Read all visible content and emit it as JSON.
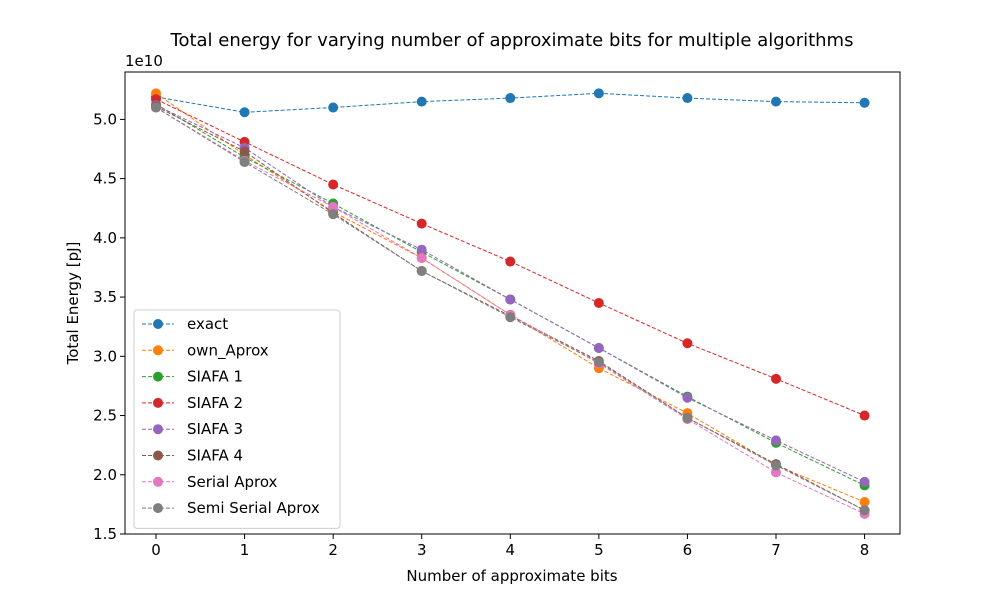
{
  "chart_data": {
    "type": "line",
    "title": "Total energy for varying number of approximate bits for multiple algorithms",
    "xlabel": "Number of approximate bits",
    "ylabel": "Total Energy [pJ]",
    "y_multiplier_label": "1e10",
    "xlim": [
      -0.35,
      8.4
    ],
    "ylim": [
      1.5,
      5.4
    ],
    "x_ticks": [
      0,
      1,
      2,
      3,
      4,
      5,
      6,
      7,
      8
    ],
    "x_tick_labels": [
      "0",
      "1",
      "2",
      "3",
      "4",
      "5",
      "6",
      "7",
      "8"
    ],
    "y_ticks": [
      1.5,
      2.0,
      2.5,
      3.0,
      3.5,
      4.0,
      4.5,
      5.0
    ],
    "y_tick_labels": [
      "1.5",
      "2.0",
      "2.5",
      "3.0",
      "3.5",
      "4.0",
      "4.5",
      "5.0"
    ],
    "grid": false,
    "legend_position": "lower-left",
    "x": [
      0,
      1,
      2,
      3,
      4,
      5,
      6,
      7,
      8
    ],
    "series": [
      {
        "name": "exact",
        "color": "#1f77b4",
        "values": [
          5.19,
          5.06,
          5.1,
          5.15,
          5.18,
          5.22,
          5.18,
          5.15,
          5.14
        ]
      },
      {
        "name": "own_Aprox",
        "color": "#ff7f0e",
        "values": [
          5.22,
          4.7,
          4.22,
          3.83,
          3.35,
          2.9,
          2.52,
          2.08,
          1.77
        ]
      },
      {
        "name": "SIAFA 1",
        "color": "#2ca02c",
        "values": [
          5.13,
          4.68,
          4.29,
          3.88,
          3.48,
          3.07,
          2.66,
          2.27,
          1.91
        ]
      },
      {
        "name": "SIAFA 2",
        "color": "#d62728",
        "values": [
          5.17,
          4.81,
          4.45,
          4.12,
          3.8,
          3.45,
          3.11,
          2.81,
          2.5
        ]
      },
      {
        "name": "SIAFA 3",
        "color": "#9467bd",
        "values": [
          5.12,
          4.76,
          4.26,
          3.9,
          3.48,
          3.07,
          2.65,
          2.29,
          1.94
        ]
      },
      {
        "name": "SIAFA 4",
        "color": "#8c564b",
        "values": [
          5.11,
          4.73,
          4.21,
          3.72,
          3.34,
          2.96,
          2.48,
          2.09,
          1.7
        ]
      },
      {
        "name": "Serial Aprox",
        "color": "#e377c2",
        "values": [
          5.1,
          4.65,
          4.26,
          3.83,
          3.35,
          2.94,
          2.47,
          2.02,
          1.67
        ]
      },
      {
        "name": "Semi Serial Aprox",
        "color": "#7f7f7f",
        "values": [
          5.1,
          4.64,
          4.2,
          3.72,
          3.33,
          2.95,
          2.48,
          2.08,
          1.7
        ]
      }
    ]
  }
}
